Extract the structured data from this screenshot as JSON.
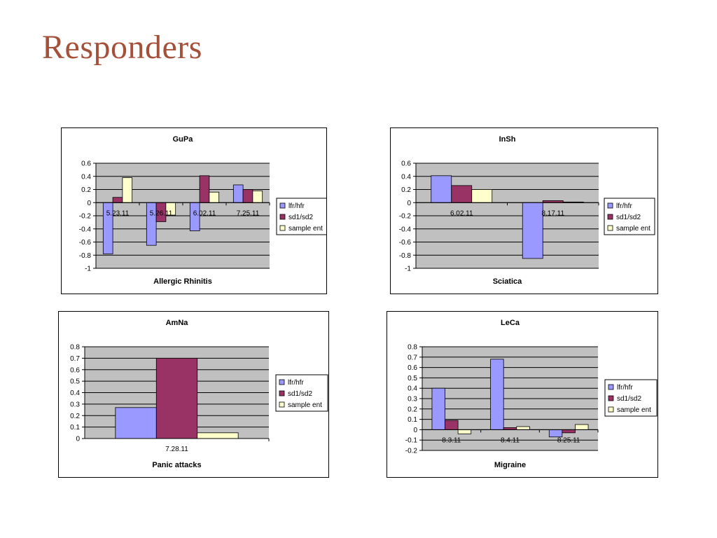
{
  "slide": {
    "title": "Responders"
  },
  "legend_labels": [
    "lfr/hfr",
    "sd1/sd2",
    "sample ent"
  ],
  "colors": {
    "lfr_hfr": "#9999ff",
    "sd1_sd2": "#993366",
    "sample_ent": "#ffffcc",
    "plot_bg": "#c0c0c0",
    "title_color": "#a5513a"
  },
  "chart_data": [
    {
      "type": "bar",
      "title": "GuPa",
      "xlabel": "Allergic Rhinitis",
      "ylabel": "",
      "categories": [
        "5.23.11",
        "5.26.11",
        "6.02.11",
        "7.25.11"
      ],
      "series": [
        {
          "name": "lfr/hfr",
          "values": [
            -0.78,
            -0.65,
            -0.43,
            0.27
          ]
        },
        {
          "name": "sd1/sd2",
          "values": [
            0.08,
            -0.29,
            0.41,
            0.2
          ]
        },
        {
          "name": "sample ent",
          "values": [
            0.38,
            -0.19,
            0.16,
            0.18
          ]
        }
      ],
      "ylim": [
        -1,
        0.6
      ],
      "yticks": [
        0.6,
        0.4,
        0.2,
        0,
        -0.2,
        -0.4,
        -0.6,
        -0.8,
        -1
      ],
      "ytick_labels": [
        "0.6",
        "0.4",
        "0.2",
        "0",
        "-0.2",
        "-0.4",
        "-0.6",
        "-0.8",
        "-1"
      ],
      "grid": true,
      "legend": "right"
    },
    {
      "type": "bar",
      "title": "InSh",
      "xlabel": "Sciatica",
      "ylabel": "",
      "categories": [
        "6.02.11",
        "8.17.11"
      ],
      "series": [
        {
          "name": "lfr/hfr",
          "values": [
            0.41,
            -0.85
          ]
        },
        {
          "name": "sd1/sd2",
          "values": [
            0.26,
            0.03
          ]
        },
        {
          "name": "sample ent",
          "values": [
            0.2,
            0.01
          ]
        }
      ],
      "ylim": [
        -1,
        0.6
      ],
      "yticks": [
        0.6,
        0.4,
        0.2,
        0,
        -0.2,
        -0.4,
        -0.6,
        -0.8,
        -1
      ],
      "ytick_labels": [
        "0.6",
        "0.4",
        "0.2",
        "0",
        "-0.2",
        "-0.4",
        "-0.6",
        "-0.8",
        "-1"
      ],
      "grid": true,
      "legend": "right"
    },
    {
      "type": "bar",
      "title": "AmNa",
      "xlabel": "Panic attacks",
      "ylabel": "",
      "categories": [
        "7.28.11"
      ],
      "series": [
        {
          "name": "lfr/hfr",
          "values": [
            0.27
          ]
        },
        {
          "name": "sd1/sd2",
          "values": [
            0.7
          ]
        },
        {
          "name": "sample ent",
          "values": [
            0.05
          ]
        }
      ],
      "ylim": [
        0,
        0.8
      ],
      "yticks": [
        0.8,
        0.7,
        0.6,
        0.5,
        0.4,
        0.3,
        0.2,
        0.1,
        0
      ],
      "ytick_labels": [
        "0.8",
        "0.7",
        "0.6",
        "0.5",
        "0.4",
        "0.3",
        "0.2",
        "0.1",
        "0"
      ],
      "grid": true,
      "legend": "right"
    },
    {
      "type": "bar",
      "title": "LeCa",
      "xlabel": "Migraine",
      "ylabel": "",
      "categories": [
        "8.3.11",
        "8.4.11",
        "8.25.11"
      ],
      "series": [
        {
          "name": "lfr/hfr",
          "values": [
            0.4,
            0.68,
            -0.07
          ]
        },
        {
          "name": "sd1/sd2",
          "values": [
            0.09,
            0.02,
            -0.03
          ]
        },
        {
          "name": "sample ent",
          "values": [
            -0.04,
            0.03,
            0.05
          ]
        }
      ],
      "ylim": [
        -0.2,
        0.8
      ],
      "yticks": [
        0.8,
        0.7,
        0.6,
        0.5,
        0.4,
        0.3,
        0.2,
        0.1,
        0,
        -0.1,
        -0.2
      ],
      "ytick_labels": [
        "0.8",
        "0.7",
        "0.6",
        "0.5",
        "0.4",
        "0.3",
        "0.2",
        "0.1",
        "0",
        "-0.1",
        "-0.2"
      ],
      "grid": true,
      "legend": "right"
    }
  ]
}
